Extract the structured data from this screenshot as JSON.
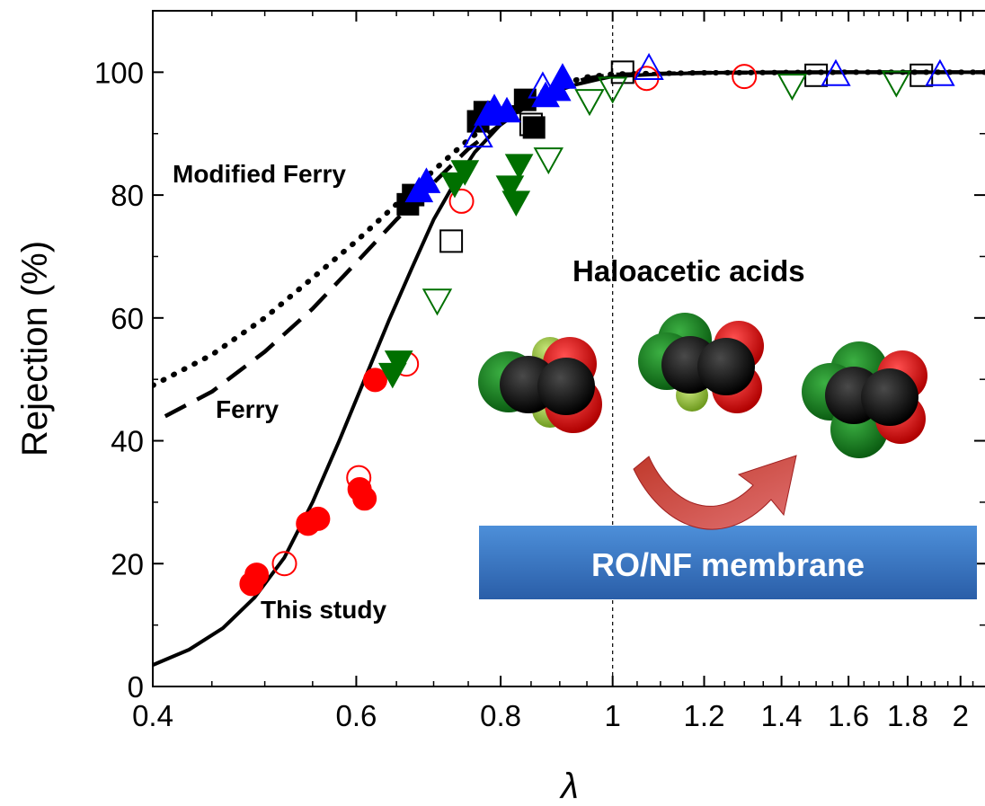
{
  "chart_data": {
    "type": "scatter",
    "xlabel": "λ",
    "ylabel": "Rejection (%)",
    "xscale": "log",
    "xlim": [
      0.4,
      2.1
    ],
    "ylim": [
      0,
      110
    ],
    "x_ticks": [
      0.4,
      0.6,
      0.8,
      1,
      1.2,
      1.4,
      1.6,
      1.8,
      2
    ],
    "x_tick_labels": [
      "0.4",
      "0.6",
      "0.8",
      "1",
      "1.2",
      "1.4",
      "1.6",
      "1.8",
      "2"
    ],
    "y_ticks": [
      0,
      20,
      40,
      60,
      80,
      100
    ],
    "y_tick_labels": [
      "0",
      "20",
      "40",
      "60",
      "80",
      "100"
    ],
    "reference_line_x": 1,
    "annotations": {
      "modified_ferry": "Modified Ferry",
      "ferry": "Ferry",
      "this_study": "This study",
      "haloacetic": "Haloacetic acids",
      "membrane": "RO/NF membrane"
    },
    "curves": [
      {
        "name": "This study",
        "style": "solid",
        "x": [
          0.4,
          0.43,
          0.46,
          0.49,
          0.52,
          0.55,
          0.58,
          0.61,
          0.64,
          0.67,
          0.7,
          0.73,
          0.76,
          0.8,
          0.84,
          0.88,
          0.93,
          0.97,
          1.0,
          1.1,
          1.2,
          1.4,
          1.6,
          1.8,
          2.1
        ],
        "y": [
          3.5,
          6,
          9.5,
          14.5,
          21,
          30,
          40,
          50,
          59.5,
          68,
          76,
          82,
          87,
          91.5,
          94.5,
          96.5,
          98,
          98.8,
          99.3,
          99.7,
          99.9,
          100,
          100,
          100,
          100
        ]
      },
      {
        "name": "Ferry",
        "style": "dashed",
        "x": [
          0.41,
          0.45,
          0.5,
          0.55,
          0.6,
          0.65,
          0.7,
          0.75,
          0.8,
          0.85,
          0.9,
          0.95,
          1.0,
          1.2,
          1.6,
          2.1
        ],
        "y": [
          44,
          48,
          54.5,
          61.5,
          69,
          76,
          82,
          87.5,
          91.5,
          95,
          97.5,
          99,
          99.6,
          99.9,
          100,
          100
        ]
      },
      {
        "name": "Modified Ferry",
        "style": "dotted",
        "x": [
          0.4,
          0.45,
          0.5,
          0.55,
          0.6,
          0.65,
          0.7,
          0.75,
          0.8,
          0.85,
          0.9,
          0.95,
          1.0,
          1.2,
          1.6,
          2.1
        ],
        "y": [
          49,
          54,
          60,
          66.5,
          72.5,
          78.5,
          84,
          89,
          93,
          96,
          98,
          99.2,
          99.7,
          99.9,
          100,
          100
        ]
      }
    ],
    "series": [
      {
        "marker": "circle",
        "fill": "filled",
        "color": "#ff0000",
        "points": [
          [
            0.487,
            16.7
          ],
          [
            0.492,
            18.2
          ],
          [
            0.545,
            26.5
          ],
          [
            0.556,
            27.3
          ],
          [
            0.61,
            30.6
          ],
          [
            0.604,
            32.1
          ],
          [
            0.623,
            49.9
          ]
        ]
      },
      {
        "marker": "circle",
        "fill": "open",
        "color": "#ff0000",
        "points": [
          [
            0.52,
            20.0
          ],
          [
            0.603,
            34.0
          ],
          [
            0.663,
            52.5
          ],
          [
            0.74,
            79.0
          ],
          [
            1.07,
            99.0
          ],
          [
            1.3,
            99.3
          ]
        ]
      },
      {
        "marker": "square",
        "fill": "filled",
        "color": "#000000",
        "points": [
          [
            0.665,
            78.5
          ],
          [
            0.672,
            80.0
          ],
          [
            0.765,
            92.0
          ],
          [
            0.775,
            93.5
          ],
          [
            0.84,
            95.5
          ],
          [
            0.855,
            91.0
          ]
        ]
      },
      {
        "marker": "square",
        "fill": "open",
        "color": "#000000",
        "points": [
          [
            0.725,
            72.5
          ],
          [
            0.85,
            91.5
          ],
          [
            1.02,
            100.0
          ],
          [
            1.5,
            99.5
          ],
          [
            1.85,
            99.5
          ]
        ]
      },
      {
        "marker": "triangle-up",
        "fill": "filled",
        "color": "#0000ff",
        "points": [
          [
            0.68,
            80.5
          ],
          [
            0.69,
            82.0
          ],
          [
            0.78,
            93.0
          ],
          [
            0.79,
            94.0
          ],
          [
            0.81,
            93.5
          ],
          [
            0.875,
            96.0
          ],
          [
            0.895,
            97.0
          ],
          [
            0.905,
            99.0
          ]
        ]
      },
      {
        "marker": "triangle-up",
        "fill": "open",
        "color": "#0000ff",
        "points": [
          [
            0.765,
            89.5
          ],
          [
            0.87,
            97.5
          ],
          [
            1.075,
            100.5
          ],
          [
            1.56,
            99.5
          ],
          [
            1.92,
            99.5
          ]
        ]
      },
      {
        "marker": "triangle-down",
        "fill": "filled",
        "color": "#007000",
        "points": [
          [
            0.645,
            51.0
          ],
          [
            0.653,
            53.0
          ],
          [
            0.73,
            82.0
          ],
          [
            0.745,
            84.0
          ],
          [
            0.815,
            81.5
          ],
          [
            0.825,
            79.0
          ],
          [
            0.83,
            85.0
          ]
        ]
      },
      {
        "marker": "triangle-down",
        "fill": "open",
        "color": "#007000",
        "points": [
          [
            0.705,
            63.0
          ],
          [
            0.88,
            86.0
          ],
          [
            0.955,
            95.5
          ],
          [
            1.0,
            97.5
          ],
          [
            1.43,
            98.0
          ],
          [
            1.76,
            98.5
          ]
        ]
      }
    ]
  }
}
